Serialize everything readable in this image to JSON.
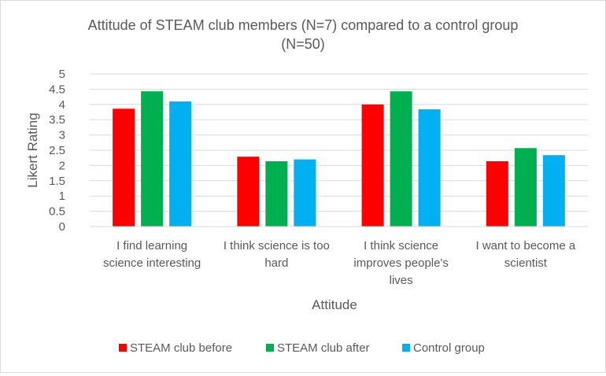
{
  "chart_data": {
    "type": "bar",
    "title": [
      "Attitude of STEAM club members (N=7) compared to a control group",
      "(N=50)"
    ],
    "xlabel": "Attitude",
    "ylabel": "Likert Rating",
    "ylim": [
      0,
      5
    ],
    "yticks": [
      "0",
      "0.5",
      "1",
      "1.5",
      "2",
      "2.5",
      "3",
      "3.5",
      "4",
      "4.5",
      "5"
    ],
    "grid": true,
    "legend_position": "bottom",
    "categories": [
      [
        "I find learning",
        "science interesting"
      ],
      [
        "I think science is too",
        "hard"
      ],
      [
        "I think science",
        "improves people's",
        "lives"
      ],
      [
        "I want to become a",
        "scientist"
      ]
    ],
    "series": [
      {
        "name": "STEAM club before",
        "color": "#ff0000",
        "values": [
          3.86,
          2.29,
          4.0,
          2.14
        ]
      },
      {
        "name": "STEAM club after",
        "color": "#00b050",
        "values": [
          4.43,
          2.14,
          4.43,
          2.57
        ]
      },
      {
        "name": "Control group",
        "color": "#00b0f0",
        "values": [
          4.1,
          2.2,
          3.84,
          2.34
        ]
      }
    ]
  }
}
